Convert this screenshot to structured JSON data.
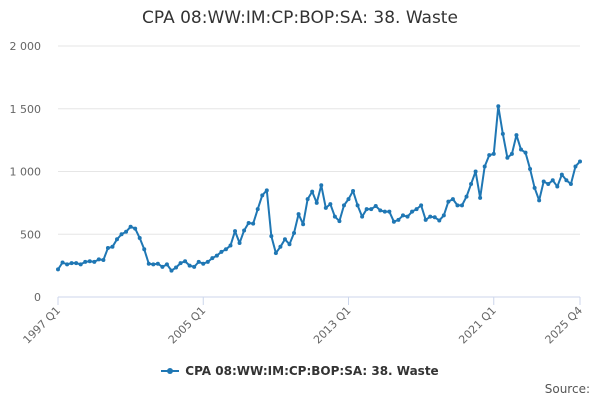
{
  "title": "CPA 08:WW:IM:CP:BOP:SA: 38. Waste",
  "source_label": "Source:",
  "chart_data": {
    "type": "line",
    "title": "CPA 08:WW:IM:CP:BOP:SA: 38. Waste",
    "xlabel": "",
    "ylabel": "",
    "ylim": [
      0,
      2000
    ],
    "yticks": [
      0,
      500,
      1000,
      1500,
      2000
    ],
    "ytick_labels": [
      "0",
      "500",
      "1 000",
      "1 500",
      "2 000"
    ],
    "xtick_labels": [
      "1997 Q1",
      "2005 Q1",
      "2013 Q1",
      "2021 Q1",
      "2025 Q4"
    ],
    "xtick_index": [
      0,
      32,
      64,
      96,
      115
    ],
    "grid": "horizontal",
    "legend_position": "bottom",
    "color": "#1f77b4",
    "series": [
      {
        "name": "CPA 08:WW:IM:CP:BOP:SA: 38. Waste",
        "values": [
          220,
          275,
          260,
          270,
          270,
          260,
          280,
          285,
          280,
          300,
          295,
          390,
          400,
          460,
          500,
          520,
          560,
          545,
          470,
          380,
          265,
          260,
          265,
          240,
          260,
          210,
          235,
          270,
          285,
          250,
          240,
          280,
          265,
          280,
          310,
          330,
          360,
          380,
          410,
          525,
          430,
          530,
          590,
          585,
          700,
          810,
          850,
          485,
          350,
          400,
          460,
          420,
          510,
          660,
          580,
          780,
          840,
          750,
          890,
          710,
          740,
          640,
          605,
          730,
          780,
          845,
          730,
          640,
          700,
          700,
          725,
          690,
          680,
          680,
          600,
          615,
          650,
          640,
          680,
          700,
          730,
          615,
          640,
          635,
          610,
          650,
          760,
          780,
          730,
          730,
          800,
          900,
          1000,
          790,
          1040,
          1130,
          1140,
          1520,
          1300,
          1110,
          1140,
          1290,
          1175,
          1150,
          1020,
          870,
          770,
          920,
          900,
          930,
          880,
          975,
          930,
          900,
          1040,
          1080
        ]
      }
    ]
  }
}
